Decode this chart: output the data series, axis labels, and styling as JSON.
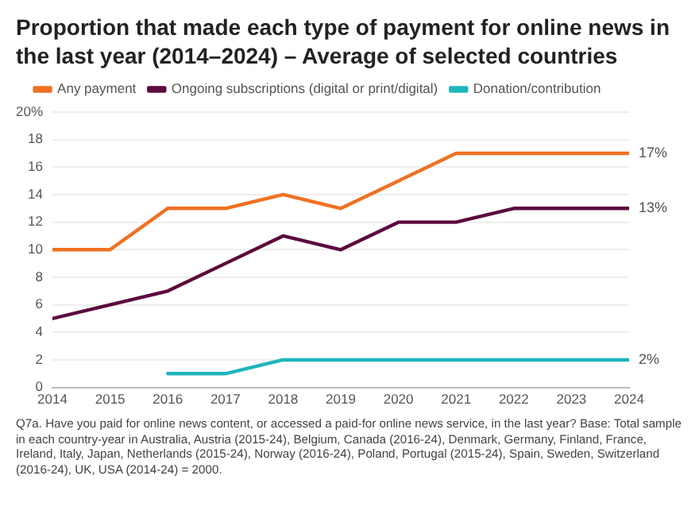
{
  "chart_data": {
    "type": "line",
    "title": "Proportion that made each type of payment for online news in the last year (2014–2024) – Average of selected countries",
    "x": [
      2014,
      2015,
      2016,
      2017,
      2018,
      2019,
      2020,
      2021,
      2022,
      2023,
      2024
    ],
    "series": [
      {
        "name": "Any payment",
        "color": "#f07122",
        "values": [
          10,
          10,
          13,
          13,
          14,
          13,
          15,
          17,
          17,
          17,
          17
        ],
        "value_labels": [
          null,
          null,
          null,
          null,
          null,
          null,
          null,
          null,
          null,
          null,
          "17%"
        ]
      },
      {
        "name": "Ongoing subscriptions (digital or print/digital)",
        "color": "#5c0a3e",
        "values": [
          5,
          6,
          7,
          9,
          11,
          10,
          12,
          12,
          13,
          13,
          13
        ],
        "value_labels": [
          null,
          null,
          null,
          null,
          null,
          null,
          null,
          null,
          null,
          null,
          "13%"
        ]
      },
      {
        "name": "Donation/contribution",
        "color": "#1fb5bd",
        "values": [
          null,
          null,
          1,
          1,
          2,
          2,
          2,
          2,
          2,
          2,
          2
        ],
        "value_labels": [
          null,
          null,
          null,
          null,
          null,
          null,
          null,
          null,
          null,
          null,
          "2%"
        ]
      }
    ],
    "xlim": [
      2014,
      2024
    ],
    "xticks": [
      2014,
      2015,
      2016,
      2017,
      2018,
      2019,
      2020,
      2021,
      2022,
      2023,
      2024
    ],
    "ylim": [
      0,
      20
    ],
    "yticks": [
      0,
      2,
      4,
      6,
      8,
      10,
      12,
      14,
      16,
      18,
      {
        "value": 20,
        "label": "20%"
      }
    ],
    "grid": "y",
    "legend": "top",
    "marker": "none",
    "line_style": "solid",
    "annotations": [
      "Q7a. Have you paid for online news content, or accessed a paid-for online news service, in the last year? Base: Total sample in each country-year in Australia, Austria (2015-24), Belgium, Canada (2016-24), Denmark, Germany, Finland, France, Ireland, Italy, Japan, Netherlands (2015-24), Norway (2016-24), Poland, Portugal (2015-24), Spain, Sweden, Switzerland (2016-24), UK, USA (2014-24) = 2000."
    ]
  }
}
